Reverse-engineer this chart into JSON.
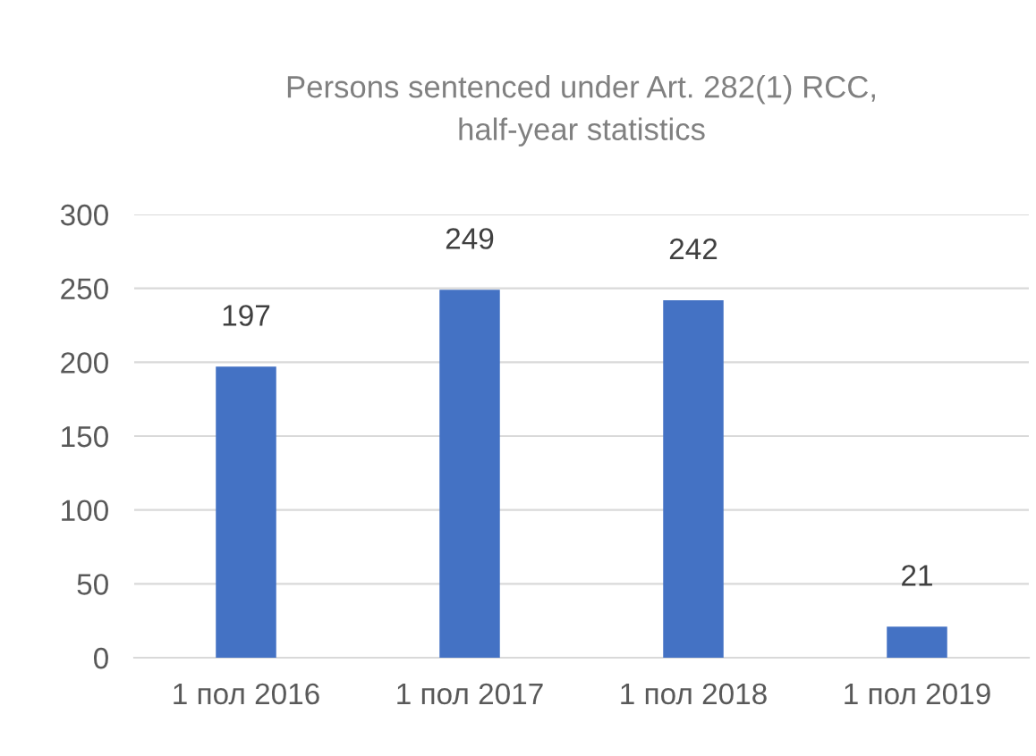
{
  "chart_data": {
    "type": "bar",
    "title": "Persons sentenced under Art. 282(1) RCC,\nhalf-year statistics",
    "categories": [
      "1 пол 2016",
      "1 пол 2017",
      "1 пол 2018",
      "1 пол 2019"
    ],
    "values": [
      197,
      249,
      242,
      21
    ],
    "color": "#4472c4",
    "ylim": [
      0,
      300
    ],
    "yticks": [
      0,
      50,
      100,
      150,
      200,
      250,
      300
    ],
    "grid": "y",
    "data_labels": true
  }
}
